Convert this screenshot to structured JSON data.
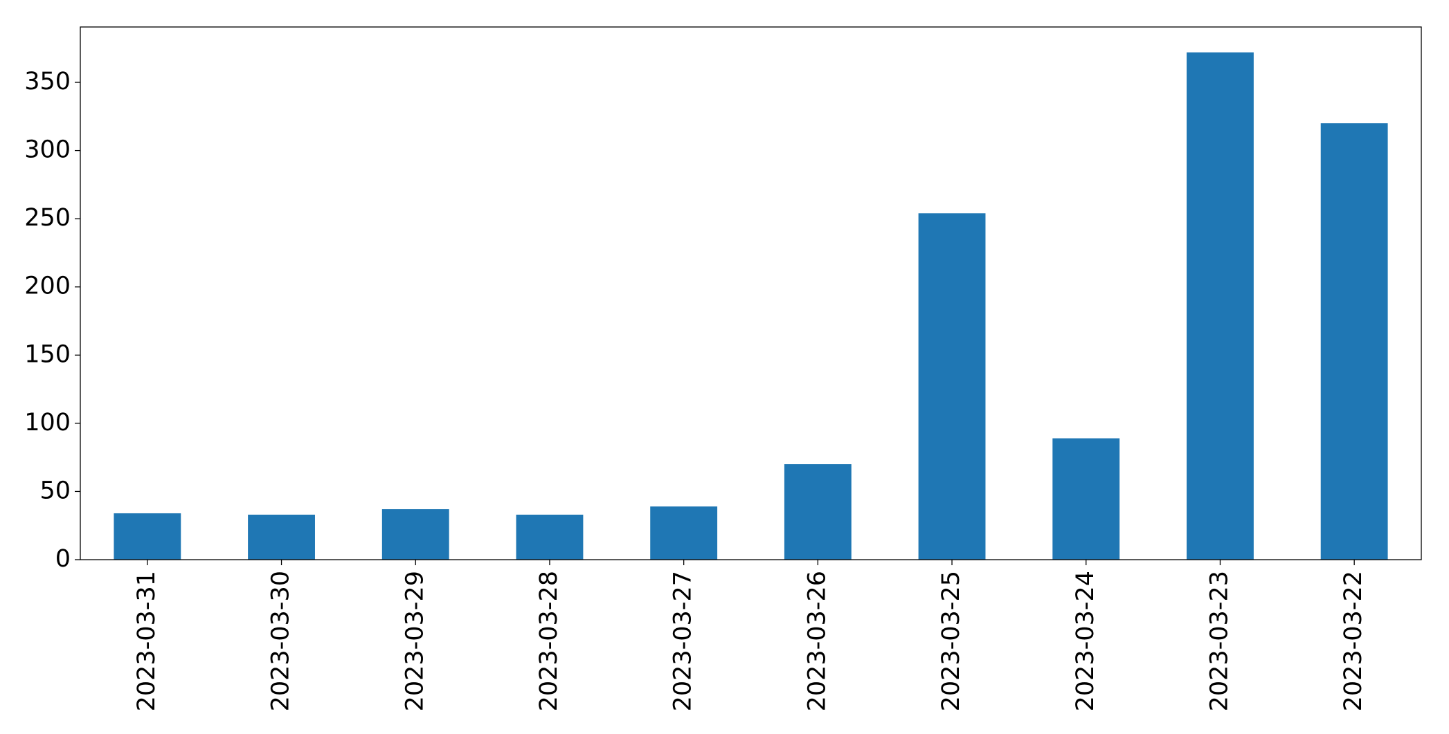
{
  "chart_data": {
    "type": "bar",
    "categories": [
      "2023-03-31",
      "2023-03-30",
      "2023-03-29",
      "2023-03-28",
      "2023-03-27",
      "2023-03-26",
      "2023-03-25",
      "2023-03-24",
      "2023-03-23",
      "2023-03-22"
    ],
    "values": [
      34,
      33,
      37,
      33,
      39,
      70,
      254,
      89,
      372,
      320
    ],
    "color": "#1f77b4",
    "ylim": [
      0,
      390.6
    ],
    "yticks": [
      0,
      50,
      100,
      150,
      200,
      250,
      300,
      350
    ],
    "grid": false
  }
}
